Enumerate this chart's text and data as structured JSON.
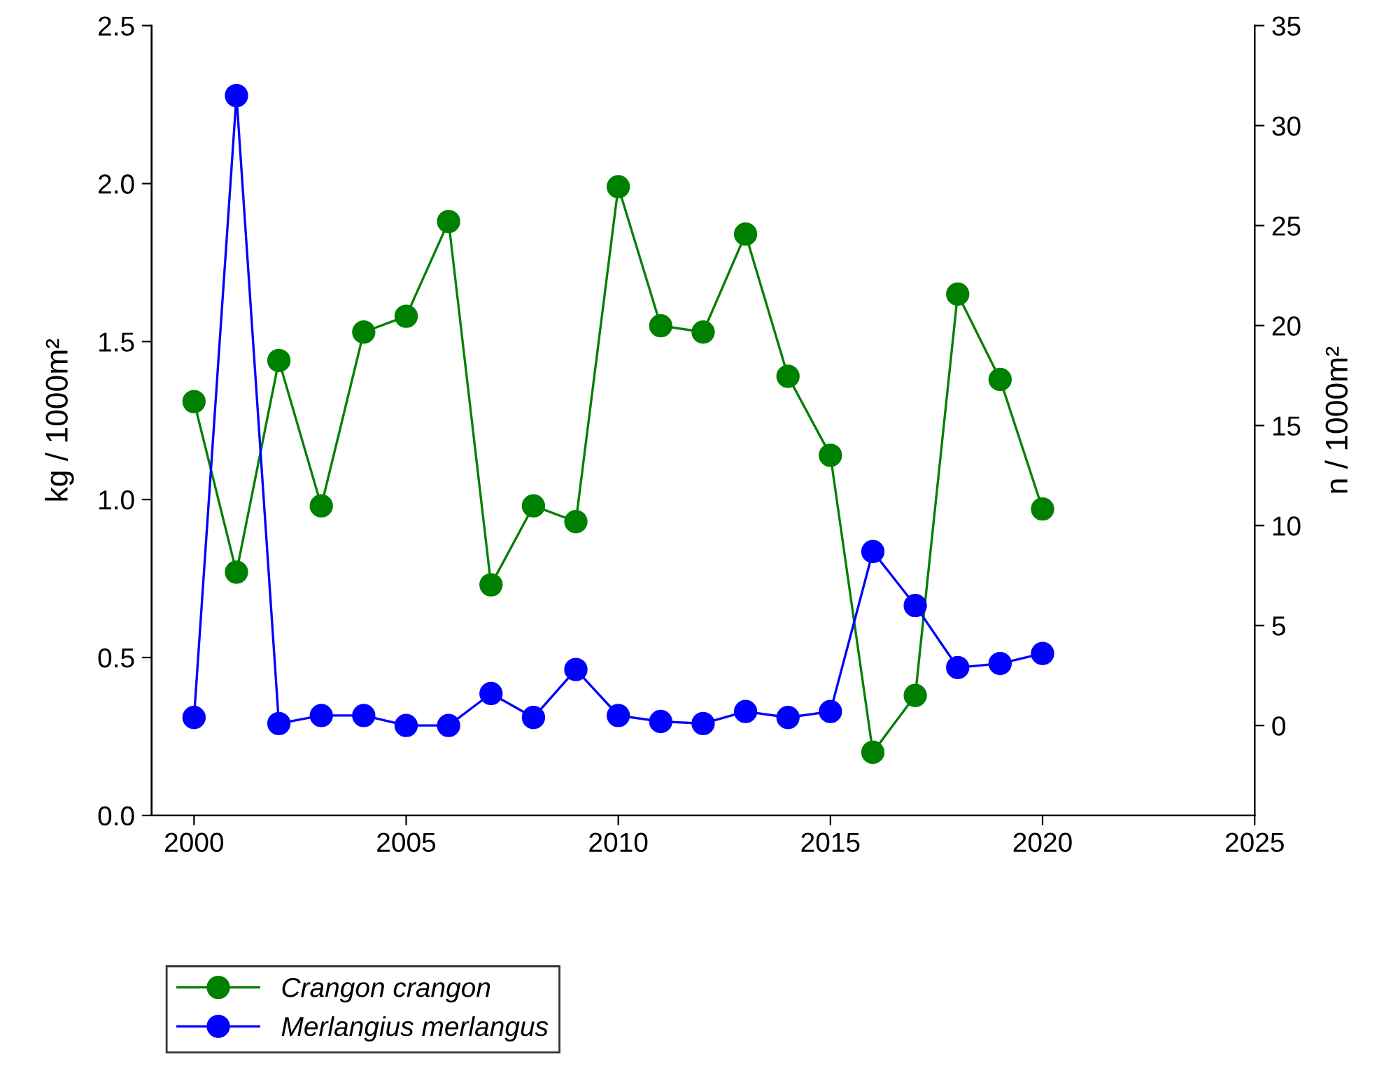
{
  "chart_data": {
    "type": "line",
    "ylabel": "kg / 1000m²",
    "y2label": "n / 1000m²",
    "x": [
      2000,
      2001,
      2002,
      2003,
      2004,
      2005,
      2006,
      2007,
      2008,
      2009,
      2010,
      2011,
      2012,
      2013,
      2014,
      2015,
      2016,
      2017,
      2018,
      2019,
      2020
    ],
    "series": [
      {
        "name": "Crangon crangon",
        "color": "#008000",
        "values": [
          1.31,
          0.77,
          1.44,
          0.98,
          1.53,
          1.58,
          1.88,
          0.73,
          0.98,
          0.93,
          1.99,
          1.55,
          1.53,
          1.84,
          1.39,
          1.14,
          0.2,
          0.38,
          1.65,
          1.38,
          0.97
        ]
      },
      {
        "name": "Merlangius merlangus",
        "color": "#0000ff",
        "axis": "y2",
        "values": [
          0.4,
          31.5,
          0.1,
          0.5,
          0.5,
          0.0,
          0.0,
          1.6,
          0.4,
          2.8,
          0.5,
          0.2,
          0.1,
          0.7,
          0.4,
          0.7,
          8.7,
          6.0,
          2.9,
          3.1,
          3.6
        ]
      }
    ],
    "xlim": [
      1999,
      2025
    ],
    "xticks": [
      2000,
      2005,
      2010,
      2015,
      2020,
      2025
    ],
    "ylim": [
      0,
      2.5
    ],
    "yticks": [
      {
        "value": 0,
        "label": "0.0"
      },
      0.5,
      {
        "value": 1,
        "label": "1.0"
      },
      1.5,
      {
        "value": 2,
        "label": "2.0"
      },
      2.5
    ],
    "y2lim": [
      -4.5,
      35
    ],
    "y2ticks": [
      0,
      5,
      10,
      15,
      20,
      25,
      30,
      35
    ],
    "marker": "circle",
    "line_style": "solid",
    "legend": "bottom left",
    "grid": false
  }
}
